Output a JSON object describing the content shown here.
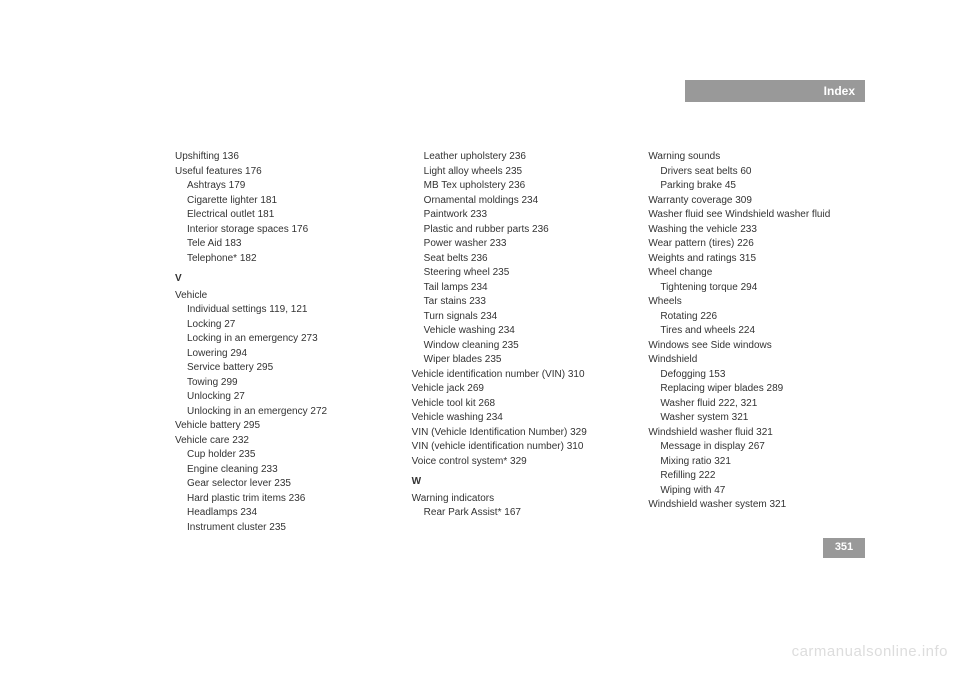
{
  "header": {
    "title": "Index"
  },
  "page_number": "351",
  "watermark": "carmanualsonline.info",
  "colors": {
    "bar_bg": "#999999",
    "bar_text": "#ffffff",
    "body_text": "#333333",
    "watermark": "#dddddd",
    "page_bg": "#ffffff"
  },
  "col1": [
    {
      "t": "Upshifting 136",
      "s": false
    },
    {
      "t": "Useful features 176",
      "s": false
    },
    {
      "t": "Ashtrays 179",
      "s": true
    },
    {
      "t": "Cigarette lighter 181",
      "s": true
    },
    {
      "t": "Electrical outlet 181",
      "s": true
    },
    {
      "t": "Interior storage spaces 176",
      "s": true
    },
    {
      "t": "Tele Aid 183",
      "s": true
    },
    {
      "t": "Telephone* 182",
      "s": true
    },
    {
      "t": "V",
      "letter": true
    },
    {
      "t": "Vehicle",
      "s": false
    },
    {
      "t": "Individual settings 119, 121",
      "s": true
    },
    {
      "t": "Locking 27",
      "s": true
    },
    {
      "t": "Locking in an emergency 273",
      "s": true
    },
    {
      "t": "Lowering 294",
      "s": true
    },
    {
      "t": "Service battery 295",
      "s": true
    },
    {
      "t": "Towing 299",
      "s": true
    },
    {
      "t": "Unlocking 27",
      "s": true
    },
    {
      "t": "Unlocking in an emergency 272",
      "s": true
    },
    {
      "t": "Vehicle battery 295",
      "s": false
    },
    {
      "t": "Vehicle care 232",
      "s": false
    },
    {
      "t": "Cup holder 235",
      "s": true
    },
    {
      "t": "Engine cleaning 233",
      "s": true
    },
    {
      "t": "Gear selector lever 235",
      "s": true
    },
    {
      "t": "Hard plastic trim items 236",
      "s": true
    },
    {
      "t": "Headlamps 234",
      "s": true
    },
    {
      "t": "Instrument cluster 235",
      "s": true
    }
  ],
  "col2": [
    {
      "t": "Leather upholstery 236",
      "s": true
    },
    {
      "t": "Light alloy wheels 235",
      "s": true
    },
    {
      "t": "MB Tex upholstery 236",
      "s": true
    },
    {
      "t": "Ornamental moldings 234",
      "s": true
    },
    {
      "t": "Paintwork 233",
      "s": true
    },
    {
      "t": "Plastic and rubber parts 236",
      "s": true
    },
    {
      "t": "Power washer 233",
      "s": true
    },
    {
      "t": "Seat belts 236",
      "s": true
    },
    {
      "t": "Steering wheel 235",
      "s": true
    },
    {
      "t": "Tail lamps 234",
      "s": true
    },
    {
      "t": "Tar stains 233",
      "s": true
    },
    {
      "t": "Turn signals 234",
      "s": true
    },
    {
      "t": "Vehicle washing 234",
      "s": true
    },
    {
      "t": "Window cleaning 235",
      "s": true
    },
    {
      "t": "Wiper blades 235",
      "s": true
    },
    {
      "t": "Vehicle identification number (VIN) 310",
      "s": false
    },
    {
      "t": "Vehicle jack 269",
      "s": false
    },
    {
      "t": "Vehicle tool kit 268",
      "s": false
    },
    {
      "t": "Vehicle washing 234",
      "s": false
    },
    {
      "t": "VIN (Vehicle Identification Number) 329",
      "s": false
    },
    {
      "t": "VIN (vehicle identification number) 310",
      "s": false
    },
    {
      "t": "Voice control system* 329",
      "s": false
    },
    {
      "t": "W",
      "letter": true
    },
    {
      "t": "Warning indicators",
      "s": false
    },
    {
      "t": "Rear Park Assist* 167",
      "s": true
    }
  ],
  "col3": [
    {
      "t": "Warning sounds",
      "s": false
    },
    {
      "t": "Drivers seat belts 60",
      "s": true
    },
    {
      "t": "Parking brake 45",
      "s": true
    },
    {
      "t": "Warranty coverage 309",
      "s": false
    },
    {
      "t": "Washer fluid see Windshield washer fluid",
      "s": false
    },
    {
      "t": "Washing the vehicle 233",
      "s": false
    },
    {
      "t": "Wear pattern (tires) 226",
      "s": false
    },
    {
      "t": "Weights and ratings 315",
      "s": false
    },
    {
      "t": "Wheel change",
      "s": false
    },
    {
      "t": "Tightening torque 294",
      "s": true
    },
    {
      "t": "Wheels",
      "s": false
    },
    {
      "t": "Rotating 226",
      "s": true
    },
    {
      "t": "Tires and wheels 224",
      "s": true
    },
    {
      "t": "Windows see Side windows",
      "s": false
    },
    {
      "t": "Windshield",
      "s": false
    },
    {
      "t": "Defogging 153",
      "s": true
    },
    {
      "t": "Replacing wiper blades 289",
      "s": true
    },
    {
      "t": "Washer fluid 222, 321",
      "s": true
    },
    {
      "t": "Washer system 321",
      "s": true
    },
    {
      "t": "Windshield washer fluid 321",
      "s": false
    },
    {
      "t": "Message in display 267",
      "s": true
    },
    {
      "t": "Mixing ratio 321",
      "s": true
    },
    {
      "t": "Refilling 222",
      "s": true
    },
    {
      "t": "Wiping with 47",
      "s": true
    },
    {
      "t": "Windshield washer system 321",
      "s": false
    }
  ]
}
